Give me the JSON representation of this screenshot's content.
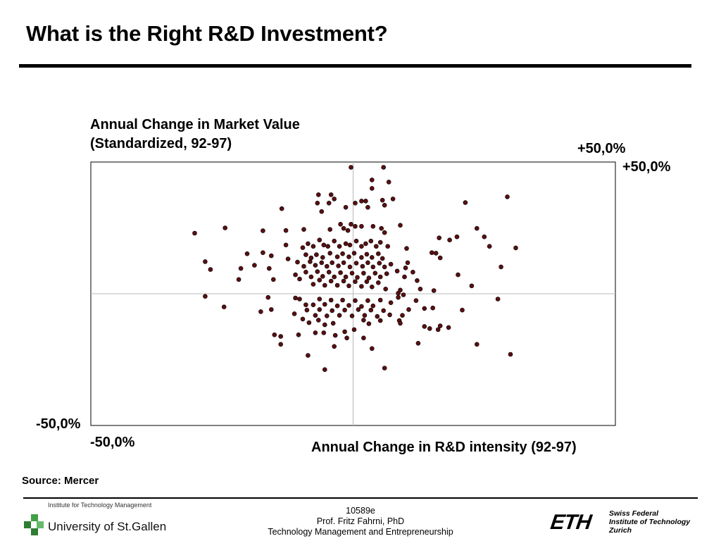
{
  "title": "What is the Right R&D Investment?",
  "chart_data": {
    "type": "scatter",
    "ylabel_line1": "Annual Change in Market Value",
    "ylabel_line2": "(Standardized, 92-97)",
    "xlabel": "Annual Change in R&D intensity (92-97)",
    "x_min_label": "-50,0%",
    "x_max_label": "+50,0%",
    "y_min_label": "-50,0%",
    "y_max_label": "+50,0%",
    "xlim": [
      -50,
      50
    ],
    "ylim": [
      -50,
      50
    ],
    "grid": "crosshair at 0",
    "point_color": "#5a0f12",
    "points": [
      [
        -0.4,
        48.0
      ],
      [
        5.8,
        48.0
      ],
      [
        3.6,
        43.2
      ],
      [
        6.8,
        42.4
      ],
      [
        3.6,
        40.0
      ],
      [
        29.4,
        36.8
      ],
      [
        -6.6,
        37.6
      ],
      [
        -4.2,
        37.6
      ],
      [
        -3.6,
        36.0
      ],
      [
        1.6,
        35.2
      ],
      [
        2.4,
        35.2
      ],
      [
        5.6,
        35.5
      ],
      [
        -13.6,
        32.3
      ],
      [
        -6.8,
        34.4
      ],
      [
        -4.6,
        34.4
      ],
      [
        0.4,
        34.4
      ],
      [
        7.6,
        36.0
      ],
      [
        6.0,
        33.6
      ],
      [
        -1.4,
        32.8
      ],
      [
        2.8,
        32.8
      ],
      [
        -6.0,
        31.2
      ],
      [
        21.4,
        34.6
      ],
      [
        -24.4,
        25.0
      ],
      [
        -17.2,
        23.9
      ],
      [
        -12.8,
        24.0
      ],
      [
        -9.4,
        24.4
      ],
      [
        -4.4,
        24.4
      ],
      [
        -2.4,
        26.4
      ],
      [
        -0.4,
        26.4
      ],
      [
        -1.8,
        24.8
      ],
      [
        -1.0,
        24.0
      ],
      [
        0.4,
        25.6
      ],
      [
        1.6,
        25.6
      ],
      [
        3.8,
        25.6
      ],
      [
        5.4,
        24.8
      ],
      [
        6.0,
        23.2
      ],
      [
        9.0,
        26.0
      ],
      [
        16.4,
        21.2
      ],
      [
        18.4,
        20.4
      ],
      [
        19.8,
        21.6
      ],
      [
        23.6,
        24.8
      ],
      [
        25.0,
        21.6
      ],
      [
        26.0,
        18.0
      ],
      [
        31.0,
        17.4
      ],
      [
        -28.2,
        12.2
      ],
      [
        -27.2,
        9.2
      ],
      [
        -21.4,
        9.6
      ],
      [
        -18.8,
        10.8
      ],
      [
        -17.2,
        15.6
      ],
      [
        -15.6,
        14.4
      ],
      [
        -12.4,
        13.2
      ],
      [
        -12.8,
        18.5
      ],
      [
        -9.6,
        17.5
      ],
      [
        -8.6,
        19.0
      ],
      [
        -7.6,
        18.0
      ],
      [
        -6.4,
        20.4
      ],
      [
        -5.6,
        18.5
      ],
      [
        -4.8,
        18.0
      ],
      [
        -3.6,
        20.0
      ],
      [
        -2.6,
        18.0
      ],
      [
        -1.4,
        19.0
      ],
      [
        -0.6,
        18.5
      ],
      [
        0.6,
        20.0
      ],
      [
        1.6,
        18.0
      ],
      [
        2.4,
        19.0
      ],
      [
        3.4,
        20.0
      ],
      [
        4.4,
        18.0
      ],
      [
        5.2,
        19.5
      ],
      [
        6.6,
        18.0
      ],
      [
        10.2,
        17.2
      ],
      [
        15.0,
        15.6
      ],
      [
        15.8,
        15.4
      ],
      [
        16.6,
        13.6
      ],
      [
        -9.0,
        14.8
      ],
      [
        -8.0,
        13.6
      ],
      [
        -7.0,
        14.8
      ],
      [
        -5.8,
        13.8
      ],
      [
        -4.4,
        15.4
      ],
      [
        -3.0,
        14.0
      ],
      [
        -2.0,
        15.2
      ],
      [
        -0.8,
        14.0
      ],
      [
        0.2,
        15.4
      ],
      [
        1.6,
        13.8
      ],
      [
        2.6,
        15.0
      ],
      [
        3.6,
        13.8
      ],
      [
        4.8,
        15.2
      ],
      [
        5.6,
        13.4
      ],
      [
        -10.6,
        12.0
      ],
      [
        -9.4,
        10.4
      ],
      [
        -8.2,
        12.2
      ],
      [
        -7.2,
        10.8
      ],
      [
        -6.0,
        11.8
      ],
      [
        -5.0,
        10.4
      ],
      [
        -4.0,
        11.8
      ],
      [
        -2.8,
        10.6
      ],
      [
        -1.8,
        11.8
      ],
      [
        -0.6,
        10.2
      ],
      [
        0.6,
        11.6
      ],
      [
        1.8,
        10.4
      ],
      [
        2.8,
        11.8
      ],
      [
        3.8,
        10.2
      ],
      [
        5.0,
        11.6
      ],
      [
        6.0,
        10.2
      ],
      [
        7.2,
        11.2
      ],
      [
        8.4,
        8.6
      ],
      [
        10.0,
        9.8
      ],
      [
        10.4,
        11.8
      ],
      [
        11.4,
        8.2
      ],
      [
        -21.8,
        5.4
      ],
      [
        -15.2,
        5.4
      ],
      [
        -11.0,
        7.2
      ],
      [
        -9.0,
        8.2
      ],
      [
        -8.0,
        6.4
      ],
      [
        -6.8,
        8.4
      ],
      [
        -5.8,
        6.6
      ],
      [
        -4.6,
        8.2
      ],
      [
        -3.6,
        6.4
      ],
      [
        -2.4,
        8.0
      ],
      [
        -1.4,
        6.4
      ],
      [
        -0.2,
        7.8
      ],
      [
        0.8,
        6.2
      ],
      [
        2.0,
        7.8
      ],
      [
        3.0,
        6.0
      ],
      [
        4.2,
        7.8
      ],
      [
        5.2,
        6.4
      ],
      [
        6.4,
        7.6
      ],
      [
        9.8,
        6.4
      ],
      [
        12.2,
        5.0
      ],
      [
        20.0,
        7.2
      ],
      [
        28.2,
        10.2
      ],
      [
        -30.2,
        23.0
      ],
      [
        -20.2,
        15.2
      ],
      [
        -16.0,
        9.6
      ],
      [
        -10.2,
        5.6
      ],
      [
        -7.6,
        3.6
      ],
      [
        -6.4,
        5.2
      ],
      [
        -5.4,
        3.2
      ],
      [
        -4.2,
        4.8
      ],
      [
        -3.0,
        3.2
      ],
      [
        -1.8,
        4.8
      ],
      [
        -0.8,
        3.0
      ],
      [
        0.4,
        4.6
      ],
      [
        1.6,
        2.8
      ],
      [
        2.6,
        4.6
      ],
      [
        3.6,
        2.6
      ],
      [
        4.8,
        4.2
      ],
      [
        6.2,
        1.8
      ],
      [
        8.6,
        0.2
      ],
      [
        9.0,
        1.4
      ],
      [
        12.8,
        1.8
      ],
      [
        15.4,
        1.2
      ],
      [
        22.6,
        3.0
      ],
      [
        -28.2,
        -1.0
      ],
      [
        -16.2,
        -1.4
      ],
      [
        -11.0,
        -1.6
      ],
      [
        -10.2,
        -2.0
      ],
      [
        -9.0,
        -4.2
      ],
      [
        -7.6,
        -4.2
      ],
      [
        -6.4,
        -2.0
      ],
      [
        -5.4,
        -4.0
      ],
      [
        -4.2,
        -2.4
      ],
      [
        -3.0,
        -4.6
      ],
      [
        -2.0,
        -2.4
      ],
      [
        -0.8,
        -4.4
      ],
      [
        0.4,
        -2.6
      ],
      [
        1.6,
        -4.8
      ],
      [
        2.8,
        -2.6
      ],
      [
        3.8,
        -4.6
      ],
      [
        5.2,
        -2.4
      ],
      [
        7.2,
        -3.4
      ],
      [
        8.6,
        -1.4
      ],
      [
        9.6,
        -0.4
      ],
      [
        12.0,
        -2.6
      ],
      [
        13.6,
        -5.6
      ],
      [
        15.2,
        -5.4
      ],
      [
        27.6,
        -2.0
      ],
      [
        20.8,
        -6.2
      ],
      [
        -24.6,
        -5.0
      ],
      [
        -17.6,
        -6.8
      ],
      [
        -15.6,
        -6.0
      ],
      [
        -8.8,
        -6.2
      ],
      [
        -7.2,
        -8.2
      ],
      [
        -6.4,
        -6.0
      ],
      [
        -5.0,
        -8.4
      ],
      [
        -4.0,
        -6.4
      ],
      [
        -2.6,
        -8.2
      ],
      [
        -1.6,
        -6.2
      ],
      [
        -0.2,
        -8.4
      ],
      [
        1.0,
        -6.0
      ],
      [
        2.2,
        -8.2
      ],
      [
        3.4,
        -6.2
      ],
      [
        4.6,
        -8.6
      ],
      [
        5.8,
        -6.4
      ],
      [
        7.0,
        -8.0
      ],
      [
        9.4,
        -8.2
      ],
      [
        13.6,
        -12.4
      ],
      [
        10.6,
        -6.0
      ],
      [
        -11.2,
        -7.6
      ],
      [
        -9.6,
        -9.6
      ],
      [
        -8.4,
        -11.0
      ],
      [
        -6.6,
        -10.0
      ],
      [
        -5.4,
        -11.8
      ],
      [
        -3.8,
        -11.2
      ],
      [
        -1.6,
        -14.4
      ],
      [
        0.2,
        -13.6
      ],
      [
        2.0,
        -10.0
      ],
      [
        3.0,
        -11.4
      ],
      [
        5.2,
        -10.2
      ],
      [
        8.8,
        -10.2
      ],
      [
        9.0,
        -11.2
      ],
      [
        14.6,
        -13.2
      ],
      [
        16.2,
        -13.6
      ],
      [
        16.6,
        -12.2
      ],
      [
        18.2,
        -12.8
      ],
      [
        -15.0,
        -15.6
      ],
      [
        -13.8,
        -16.2
      ],
      [
        -10.4,
        -15.6
      ],
      [
        -7.2,
        -14.8
      ],
      [
        -5.6,
        -14.8
      ],
      [
        -3.4,
        -15.8
      ],
      [
        -1.2,
        -16.8
      ],
      [
        2.0,
        -16.8
      ],
      [
        12.4,
        -18.8
      ],
      [
        23.6,
        -19.2
      ],
      [
        -13.8,
        -19.2
      ],
      [
        -3.6,
        -20.0
      ],
      [
        3.6,
        -20.8
      ],
      [
        30.0,
        -23.0
      ],
      [
        -8.6,
        -23.4
      ],
      [
        -5.4,
        -28.8
      ],
      [
        6.0,
        -28.2
      ]
    ]
  },
  "source": "Source: Mercer",
  "footer": {
    "code": "10589e",
    "author": "Prof. Fritz Fahrni, PhD",
    "course": "Technology Management and Entrepreneurship",
    "hsg_institute": "Institute for Technology Management",
    "hsg_name": "University of St.Gallen",
    "eth_logo": "ETH",
    "eth_line1": "Swiss Federal",
    "eth_line2": "Institute of Technology",
    "eth_line3": "Zurich"
  }
}
